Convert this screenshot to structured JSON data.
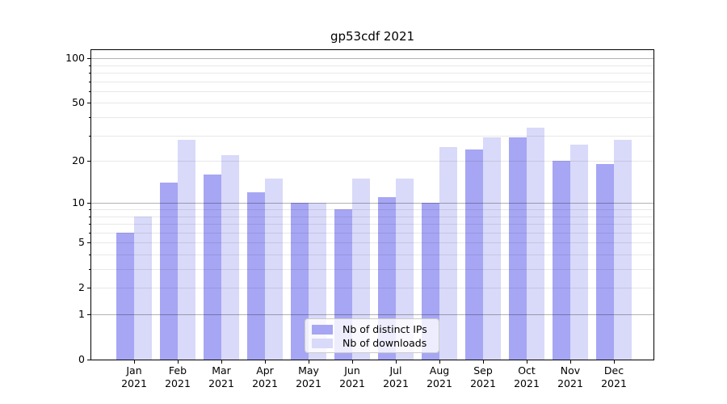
{
  "chart_data": {
    "type": "bar",
    "title": "gp53cdf 2021",
    "year_label": "2021",
    "categories": [
      "Jan",
      "Feb",
      "Mar",
      "Apr",
      "May",
      "Jun",
      "Jul",
      "Aug",
      "Sep",
      "Oct",
      "Nov",
      "Dec"
    ],
    "series": [
      {
        "name": "Nb of distinct IPs",
        "color": "#a6a6f4",
        "values": [
          6,
          14,
          16,
          12,
          10,
          9,
          11,
          10,
          24,
          29,
          20,
          19
        ]
      },
      {
        "name": "Nb of downloads",
        "color": "#d9d9f9",
        "values": [
          8,
          28,
          22,
          15,
          10,
          15,
          15,
          25,
          29,
          34,
          26,
          28
        ]
      }
    ],
    "xlabel": "",
    "ylabel": "",
    "yscale": "log1p",
    "ylim": [
      0,
      114
    ],
    "ytick_labels": [
      100,
      50,
      20,
      10,
      5,
      2,
      1,
      0
    ],
    "major_gridlines": [
      1,
      10,
      100
    ],
    "minor_gridlines": [
      2,
      3,
      4,
      5,
      6,
      7,
      8,
      9,
      20,
      30,
      40,
      50,
      60,
      70,
      80,
      90
    ],
    "grid": true,
    "legend_position": "lower center",
    "colors": {
      "major_grid": "#b3b3b3",
      "minor_grid": "#e8e8e8",
      "spine": "#000000",
      "background": "#ffffff"
    }
  }
}
